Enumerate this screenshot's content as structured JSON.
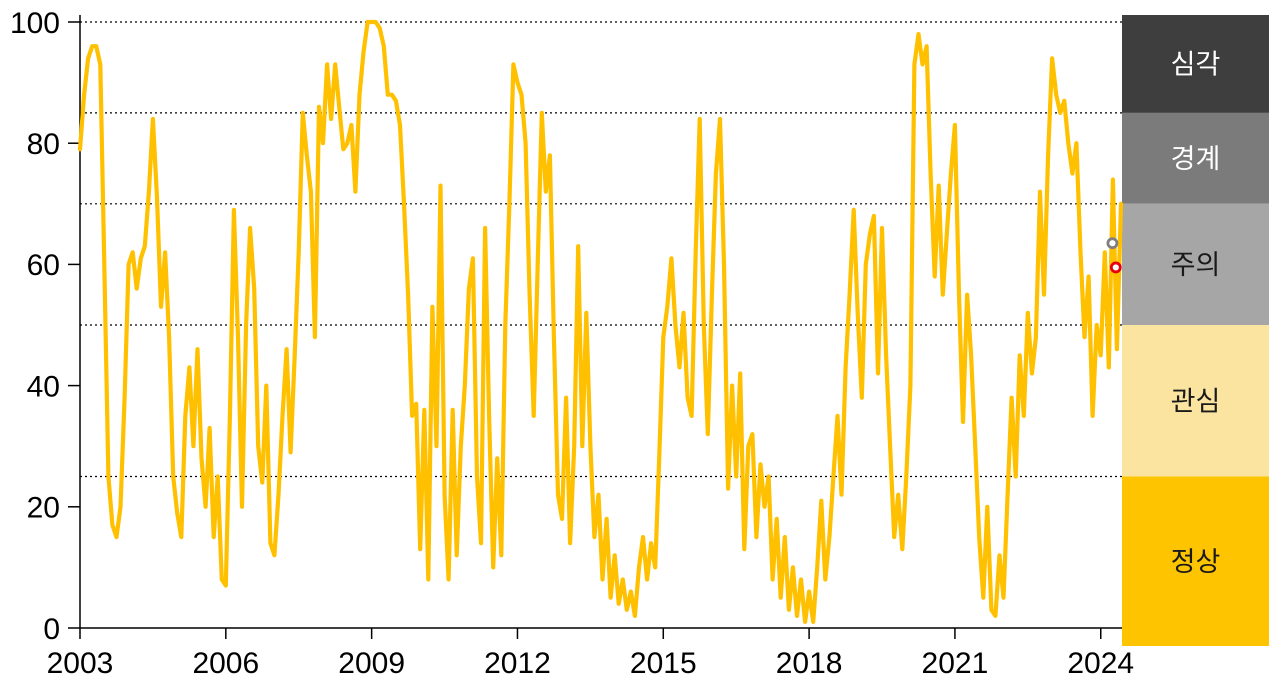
{
  "page": {
    "background": "#FFFFFF"
  },
  "chart_data": {
    "type": "line",
    "title": "",
    "frequency": "monthly",
    "x_start_year": 2003,
    "x_domain": [
      2003.0,
      2024.4167
    ],
    "ylim": [
      0,
      100
    ],
    "y_ticks": [
      0,
      20,
      40,
      60,
      80,
      100
    ],
    "x_ticks": [
      2003,
      2006,
      2009,
      2012,
      2015,
      2018,
      2021,
      2024
    ],
    "gridline_values": [
      25,
      50,
      70,
      85,
      100
    ],
    "grid_on": true,
    "line_color": "#FFC000",
    "axis_color": "#000000",
    "values": [
      79,
      88,
      94,
      96,
      96,
      93,
      60,
      25,
      17,
      15,
      20,
      38,
      60,
      62,
      56,
      61,
      63,
      72,
      84,
      71,
      53,
      62,
      48,
      25,
      19,
      15,
      35,
      43,
      30,
      46,
      28,
      20,
      33,
      15,
      25,
      8,
      7,
      35,
      69,
      48,
      20,
      50,
      66,
      56,
      30,
      24,
      40,
      14,
      12,
      22,
      35,
      46,
      29,
      45,
      62,
      85,
      78,
      72,
      48,
      86,
      80,
      93,
      84,
      93,
      86,
      79,
      80,
      83,
      72,
      88,
      95,
      100,
      100,
      100,
      99,
      96,
      88,
      88,
      87,
      83,
      70,
      55,
      35,
      37,
      13,
      36,
      8,
      53,
      30,
      73,
      22,
      8,
      36,
      12,
      30,
      40,
      56,
      61,
      25,
      14,
      66,
      35,
      10,
      28,
      12,
      50,
      70,
      93,
      90,
      88,
      80,
      55,
      35,
      60,
      85,
      72,
      78,
      48,
      22,
      18,
      38,
      14,
      30,
      63,
      30,
      52,
      30,
      15,
      22,
      8,
      18,
      5,
      12,
      4,
      8,
      3,
      6,
      2,
      10,
      15,
      8,
      14,
      10,
      28,
      48,
      53,
      61,
      50,
      43,
      52,
      38,
      35,
      62,
      84,
      50,
      32,
      55,
      75,
      84,
      60,
      23,
      40,
      25,
      42,
      13,
      30,
      32,
      15,
      27,
      20,
      25,
      8,
      18,
      5,
      15,
      3,
      10,
      2,
      8,
      1,
      6,
      1,
      10,
      21,
      8,
      15,
      25,
      35,
      22,
      43,
      55,
      69,
      52,
      38,
      60,
      65,
      68,
      42,
      66,
      45,
      30,
      15,
      22,
      13,
      25,
      40,
      93,
      98,
      93,
      96,
      75,
      58,
      73,
      55,
      65,
      75,
      83,
      55,
      34,
      55,
      45,
      30,
      15,
      5,
      20,
      3,
      2,
      12,
      5,
      22,
      38,
      25,
      45,
      35,
      52,
      42,
      48,
      72,
      55,
      78,
      94,
      88,
      85,
      87,
      80,
      75,
      80,
      62,
      48,
      58,
      35,
      50,
      45,
      62,
      43,
      74,
      46,
      70
    ],
    "zones": [
      {
        "id": "severe",
        "label": "심각",
        "from": 85,
        "to": 100,
        "color": "#3E3E3E",
        "text_color": "#FFFFFF"
      },
      {
        "id": "alert",
        "label": "경계",
        "from": 70,
        "to": 85,
        "color": "#7B7B7B",
        "text_color": "#FFFFFF"
      },
      {
        "id": "caution",
        "label": "주의",
        "from": 50,
        "to": 70,
        "color": "#A6A6A6",
        "text_color": "#1A1A1A"
      },
      {
        "id": "attention",
        "label": "관심",
        "from": 25,
        "to": 50,
        "color": "#FBE4A0",
        "text_color": "#1A1A1A"
      },
      {
        "id": "normal",
        "label": "정상",
        "from": 0,
        "to": 25,
        "color": "#FFC400",
        "text_color": "#1A1A1A"
      }
    ],
    "markers": [
      {
        "id": "gray-circle",
        "t": 2024.24,
        "value": 63.5,
        "color": "#7F7F7F",
        "style": "open-circle"
      },
      {
        "id": "red-circle",
        "t": 2024.31,
        "value": 59.5,
        "color": "#E8000D",
        "style": "open-circle"
      }
    ]
  }
}
